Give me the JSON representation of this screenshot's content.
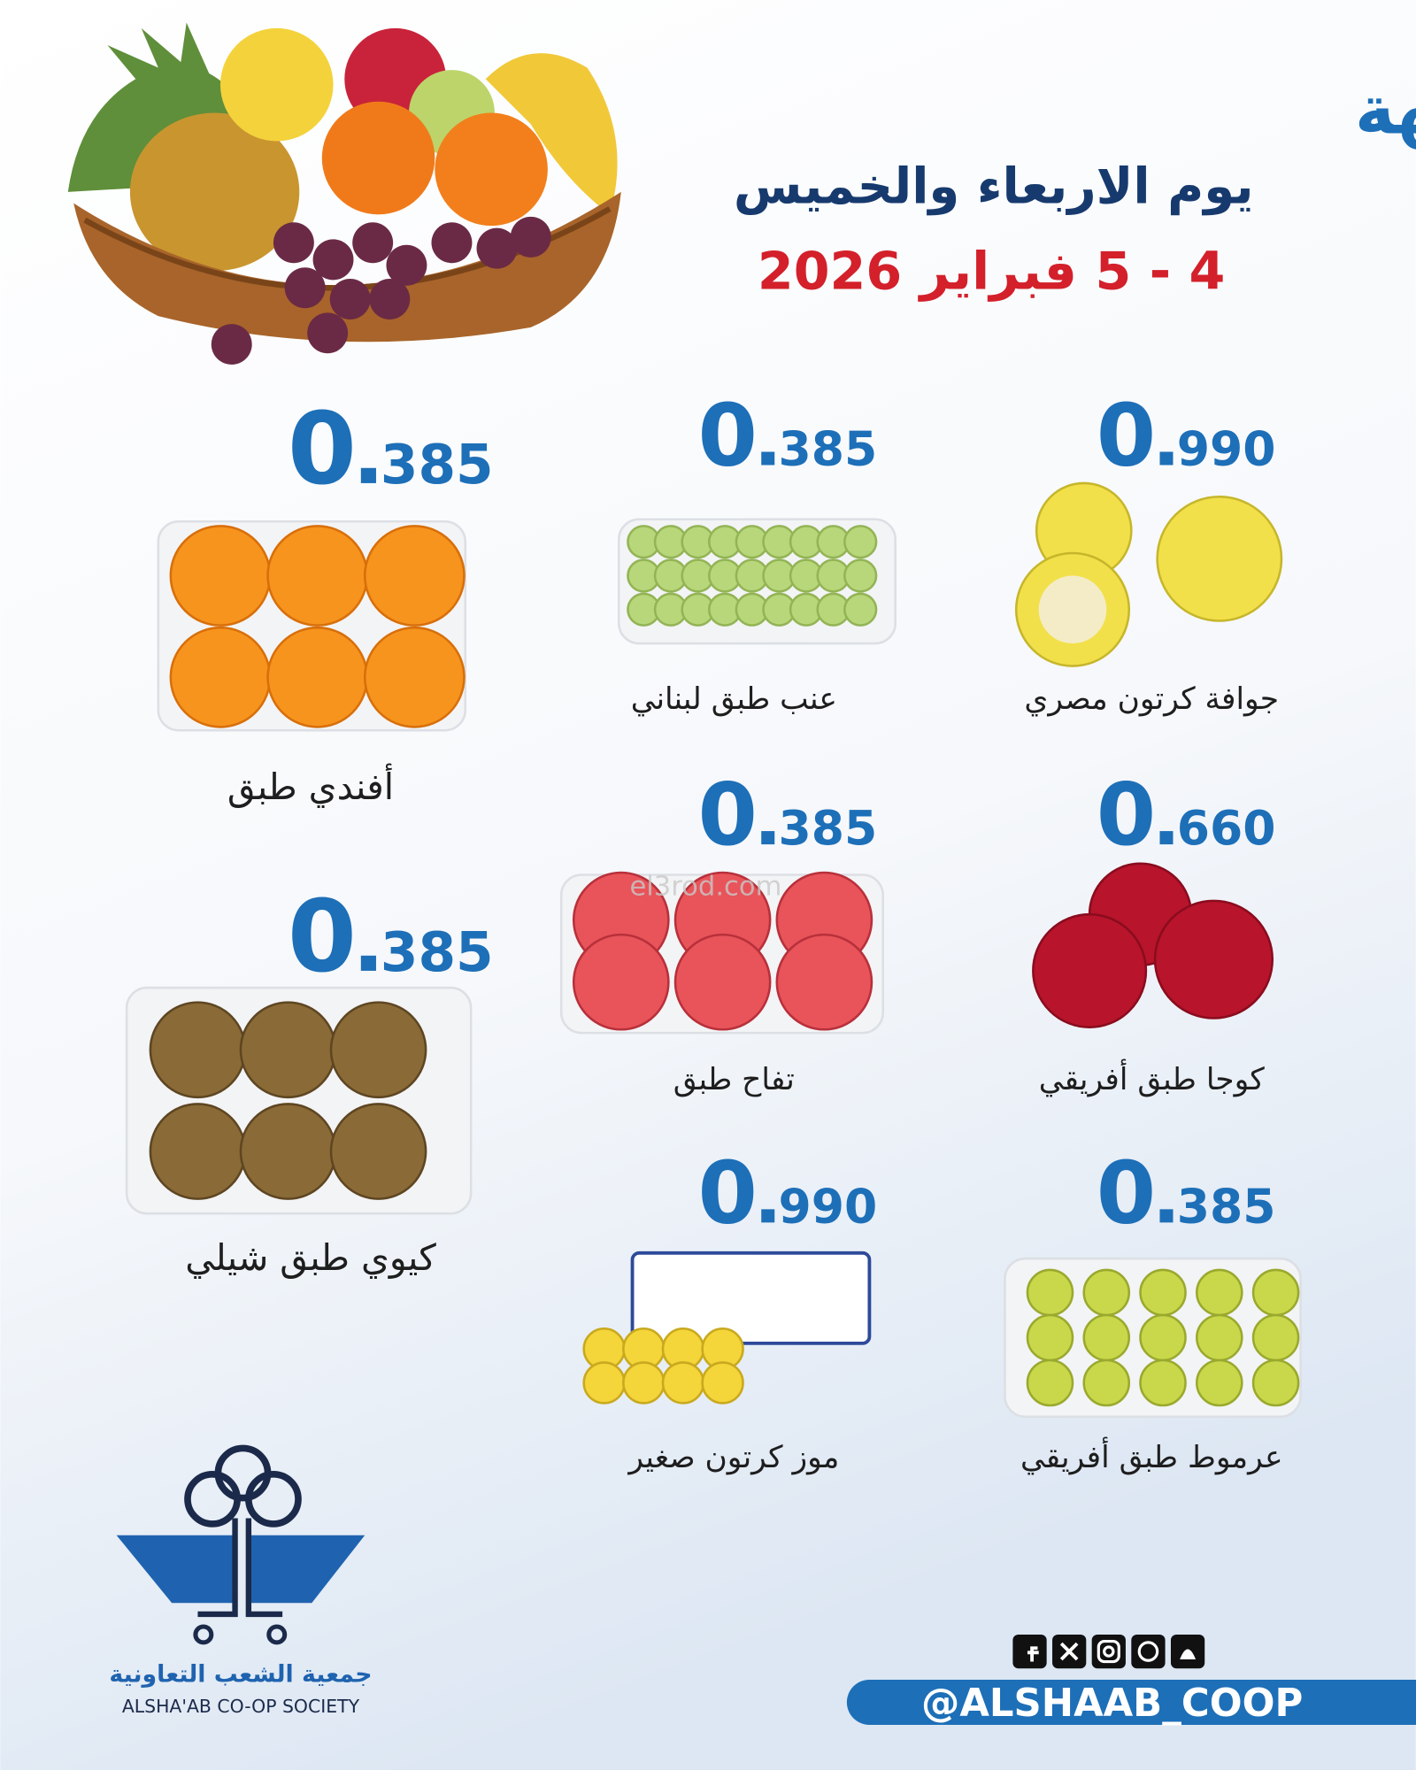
{
  "header": {
    "title": "أسعار الخضار والفاكهة",
    "subtitle": "يوم الاربعاء والخميس",
    "date": "4 - 5  فبراير 2026"
  },
  "products": [
    {
      "name": "جوافة كرتون مصري",
      "price": {
        "whole": "0",
        "fraction": "990"
      }
    },
    {
      "name": "عنب طبق لبناني",
      "price": {
        "whole": "0",
        "fraction": "385"
      }
    },
    {
      "name": "أفندي طبق",
      "price": {
        "whole": "0",
        "fraction": "385"
      }
    },
    {
      "name": "كوجا طبق أفريقي",
      "price": {
        "whole": "0",
        "fraction": "660"
      }
    },
    {
      "name": "تفاح طبق",
      "price": {
        "whole": "0",
        "fraction": "385"
      }
    },
    {
      "name": "كيوي طبق شيلي",
      "price": {
        "whole": "0",
        "fraction": "385"
      }
    },
    {
      "name": "عرموط طبق أفريقي",
      "price": {
        "whole": "0",
        "fraction": "385"
      }
    },
    {
      "name": "موز كرتون صغير",
      "price": {
        "whole": "0",
        "fraction": "990"
      }
    }
  ],
  "watermark": "el3rod.com",
  "footer": {
    "logo_arabic": "جمعية الشعب التعاونية",
    "logo_english": "ALSHA'AB CO-OP SOCIETY",
    "handle": "@ALSHAAB_COOP"
  }
}
